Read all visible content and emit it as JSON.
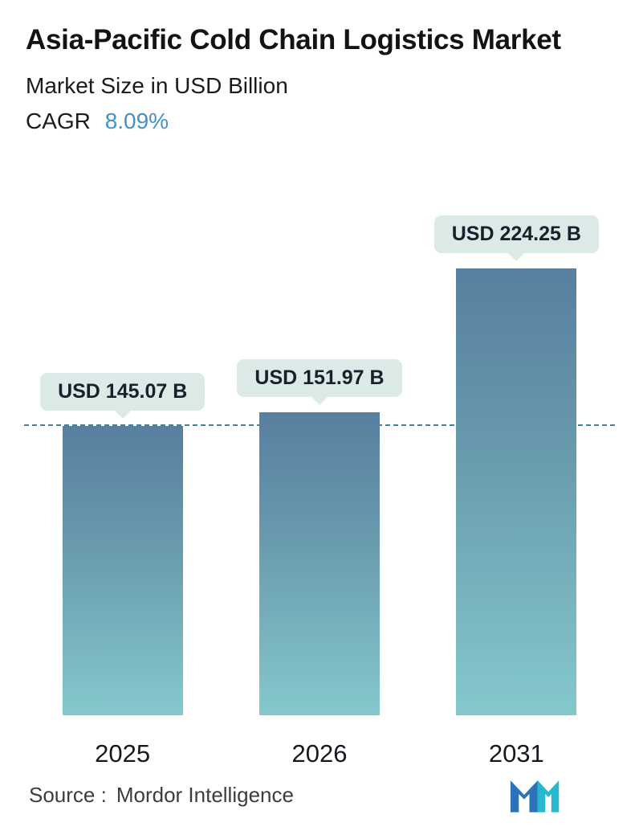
{
  "header": {
    "title": "Asia-Pacific Cold Chain Logistics Market",
    "subtitle": "Market Size in USD Billion",
    "cagr_label": "CAGR",
    "cagr_value": "8.09%"
  },
  "chart_data": {
    "type": "bar",
    "title": "Asia-Pacific Cold Chain Logistics Market",
    "subtitle": "Market Size in USD Billion",
    "cagr_percent": 8.09,
    "categories": [
      "2025",
      "2026",
      "2031"
    ],
    "values": [
      145.07,
      151.97,
      224.25
    ],
    "value_labels": [
      "USD 145.07 B",
      "USD 151.97 B",
      "USD 224.25 B"
    ],
    "unit": "USD Billion",
    "ylim": [
      0,
      230
    ],
    "reference_line_value": 145.07,
    "grid": false,
    "legend": false,
    "colors": {
      "bar_gradient_top": "#587f9f",
      "bar_gradient_bottom": "#85c8cc",
      "value_label_bg": "#dbe9e7",
      "reference_line": "#4b8096",
      "cagr_accent": "#4392c4"
    }
  },
  "footer": {
    "source_label": "Source :",
    "source_value": "Mordor Intelligence",
    "logo": "mordor-intelligence-logo"
  }
}
